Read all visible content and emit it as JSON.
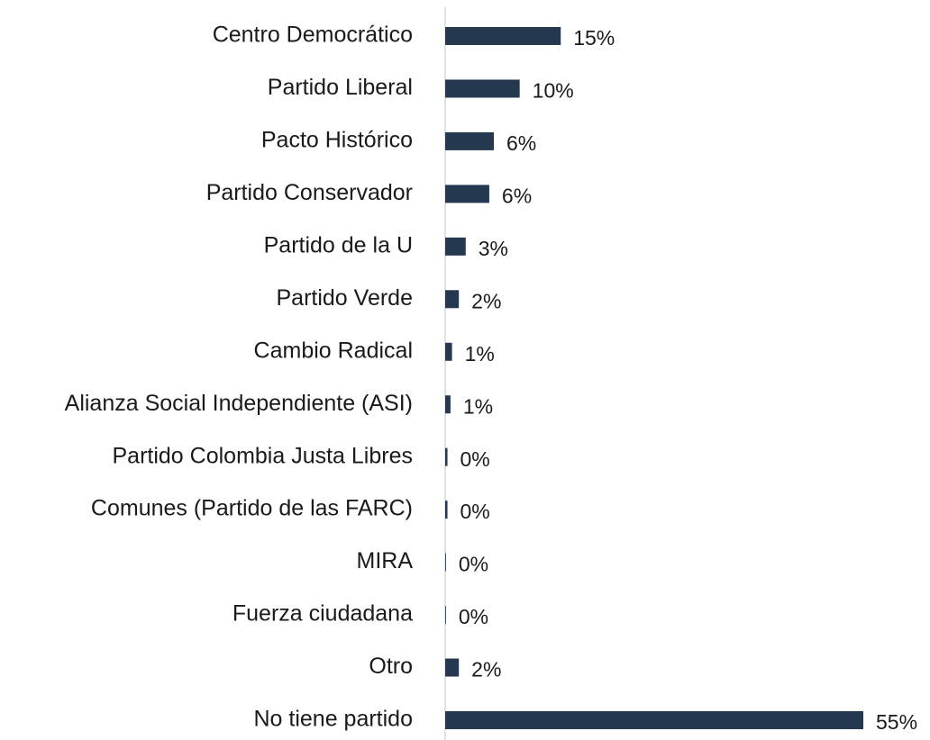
{
  "chart_data": {
    "type": "hbar",
    "categories": [
      "Centro Democrático",
      "Partido Liberal",
      "Pacto Histórico",
      "Partido Conservador",
      "Partido de la U",
      "Partido Verde",
      "Cambio Radical",
      "Alianza Social Independiente (ASI)",
      "Partido Colombia Justa Libres",
      "Comunes (Partido de las FARC)",
      "MIRA",
      "Fuerza ciudadana",
      "Otro",
      "No tiene partido"
    ],
    "values": [
      15.2,
      9.8,
      6.4,
      5.8,
      2.7,
      1.8,
      0.9,
      0.7,
      0.3,
      0.3,
      0.1,
      0.1,
      1.8,
      55
    ],
    "value_labels": [
      "15%",
      "10%",
      "6%",
      "6%",
      "3%",
      "2%",
      "1%",
      "1%",
      "0%",
      "0%",
      "0%",
      "0%",
      "2%",
      "55%"
    ],
    "color": "#243850"
  }
}
